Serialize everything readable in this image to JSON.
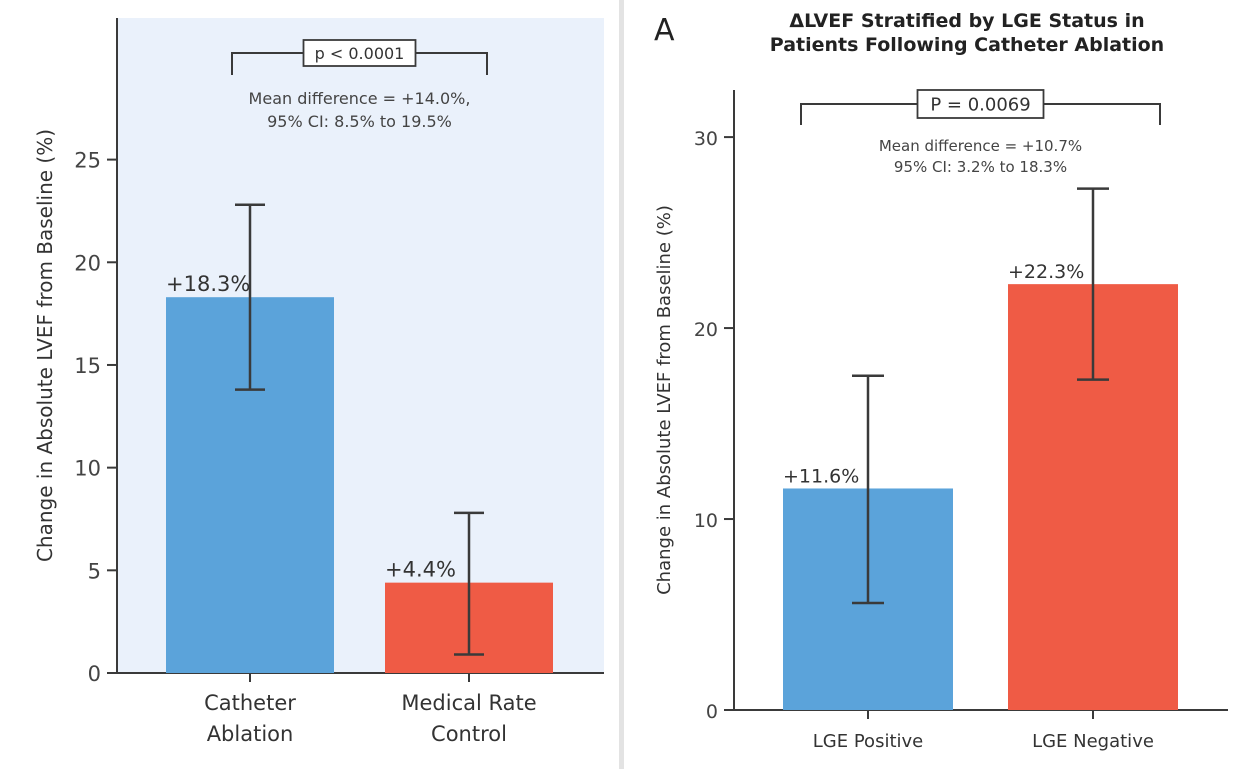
{
  "chart_data": [
    {
      "type": "bar",
      "title": "",
      "ylabel": "Change in Absolute LVEF from Baseline (%)",
      "ylim": [
        0,
        28
      ],
      "yticks": [
        "0",
        "5",
        "10",
        "15",
        "20",
        "25"
      ],
      "ytick_values": [
        0,
        5,
        10,
        15,
        20,
        25
      ],
      "categories": [
        [
          "Catheter",
          "Ablation"
        ],
        [
          "Medical Rate",
          "Control"
        ]
      ],
      "values": [
        18.3,
        4.4
      ],
      "error_low": [
        13.8,
        0.9
      ],
      "error_high": [
        22.8,
        7.8
      ],
      "value_labels": [
        "+18.3%",
        "+4.4%"
      ],
      "colors": [
        "#5ba3da",
        "#ef5b45"
      ],
      "background": "#eaf1fb",
      "significance": {
        "p_label": "p < 0.0001",
        "note_lines": [
          "Mean difference = +14.0%,",
          "95% CI: 8.5% to 19.5%"
        ]
      },
      "grid": false,
      "legend": "none"
    },
    {
      "type": "bar",
      "panel_label": "A",
      "title_lines": [
        "ΔLVEF Stratified by LGE Status in",
        "Patients Following Catheter Ablation"
      ],
      "ylabel": "Change in Absolute LVEF from Baseline (%)",
      "ylim": [
        0,
        31
      ],
      "yticks": [
        "0",
        "10",
        "20",
        "30"
      ],
      "ytick_values": [
        0,
        10,
        20,
        30
      ],
      "categories": [
        [
          "LGE Positive"
        ],
        [
          "LGE Negative"
        ]
      ],
      "values": [
        11.6,
        22.3
      ],
      "error_low": [
        5.6,
        17.3
      ],
      "error_high": [
        17.5,
        27.3
      ],
      "value_labels": [
        "+11.6%",
        "+22.3%"
      ],
      "colors": [
        "#5ba3da",
        "#ef5b45"
      ],
      "background": "#ffffff",
      "significance": {
        "p_label": "P = 0.0069",
        "note_lines": [
          "Mean difference = +10.7%",
          "95% CI: 3.2% to 18.3%"
        ]
      },
      "grid": false,
      "legend": "none"
    }
  ]
}
